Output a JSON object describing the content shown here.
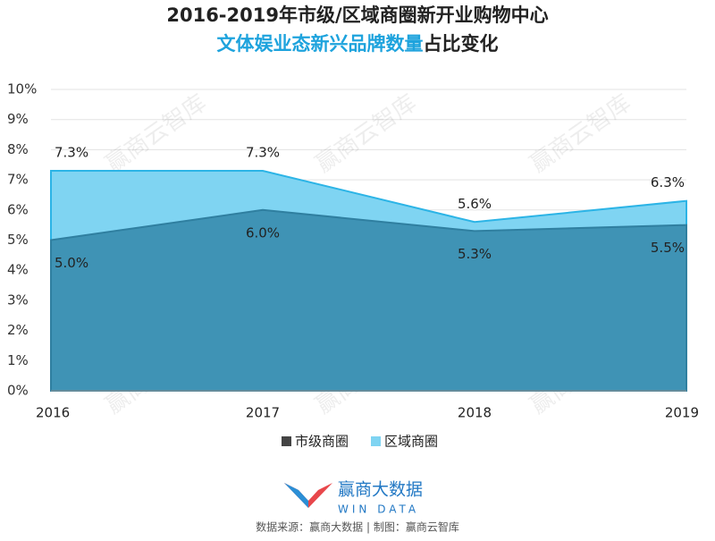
{
  "chart_data": {
    "type": "area",
    "title": "2016-2019年市级/区域商圈新开业购物中心",
    "subtitle_highlight": "文体娱业态新兴品牌数量",
    "subtitle_rest": "占比变化",
    "categories": [
      "2016",
      "2017",
      "2018",
      "2019"
    ],
    "series": [
      {
        "name": "区域商圈",
        "color": "#7fd4f2",
        "values": [
          7.3,
          7.3,
          5.6,
          6.3
        ],
        "value_labels": [
          "7.3%",
          "7.3%",
          "5.6%",
          "6.3%"
        ]
      },
      {
        "name": "市级商圈",
        "color": "#3f93b5",
        "values": [
          5.0,
          6.0,
          5.3,
          5.5
        ],
        "value_labels": [
          "5.0%",
          "6.0%",
          "5.3%",
          "5.5%"
        ]
      }
    ],
    "ylim": [
      0,
      10
    ],
    "yticks": [
      {
        "value": 0,
        "label": "0%"
      },
      {
        "value": 1,
        "label": "1%"
      },
      {
        "value": 2,
        "label": "2%"
      },
      {
        "value": 3,
        "label": "3%"
      },
      {
        "value": 4,
        "label": "4%"
      },
      {
        "value": 5,
        "label": "5%"
      },
      {
        "value": 6,
        "label": "6%"
      },
      {
        "value": 7,
        "label": "7%"
      },
      {
        "value": 8,
        "label": "8%"
      },
      {
        "value": 9,
        "label": "9%"
      },
      {
        "value": 10,
        "label": "10%"
      }
    ],
    "grid": true,
    "legend": "bottom",
    "watermark": "赢商云智库",
    "brand": "赢商大数据",
    "brand_en": "WIN DATA",
    "source": "数据来源：赢商大数据 | 制图：赢商云智库"
  }
}
